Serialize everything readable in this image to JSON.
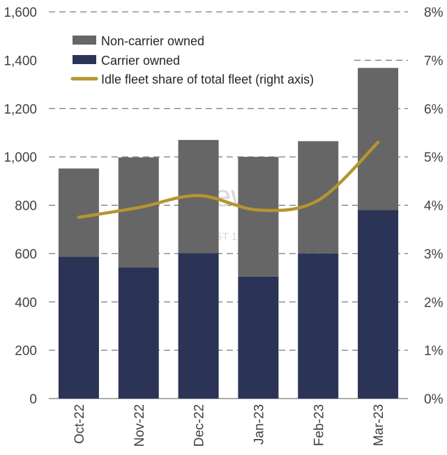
{
  "chart_data": {
    "type": "bar",
    "stacked": true,
    "categories": [
      "Oct-22",
      "Nov-22",
      "Dec-22",
      "Jan-23",
      "Feb-23",
      "Mar-23"
    ],
    "series": [
      {
        "name": "Carrier owned",
        "type": "bar",
        "values": [
          587,
          543,
          602,
          505,
          600,
          780
        ],
        "color": "#2b3456"
      },
      {
        "name": "Non-carrier owned",
        "type": "bar",
        "values": [
          365,
          455,
          468,
          495,
          465,
          588
        ],
        "color": "#666666"
      },
      {
        "name": "Idle fleet share of total fleet (right axis)",
        "type": "line",
        "axis": "right",
        "values": [
          3.75,
          3.95,
          4.2,
          3.9,
          4.1,
          5.3
        ],
        "color": "#b5952f"
      }
    ],
    "legend": [
      "Non-carrier owned",
      "Carrier owned",
      "Idle fleet share of total fleet (right axis)"
    ],
    "legend_position": "top-left",
    "y_left": {
      "min": 0,
      "max": 1600,
      "ticks": [
        "0",
        "200",
        "400",
        "600",
        "800",
        "1,000",
        "1,200",
        "1,400",
        "1,600"
      ]
    },
    "y_right": {
      "min": 0,
      "max": 8,
      "ticks": [
        "0%",
        "1%",
        "2%",
        "3%",
        "4%",
        "5%",
        "6%",
        "7%",
        "8%"
      ]
    },
    "grid": "dashed horizontal",
    "watermark": {
      "text": "Drewry",
      "subtext": "EST 1970"
    }
  }
}
